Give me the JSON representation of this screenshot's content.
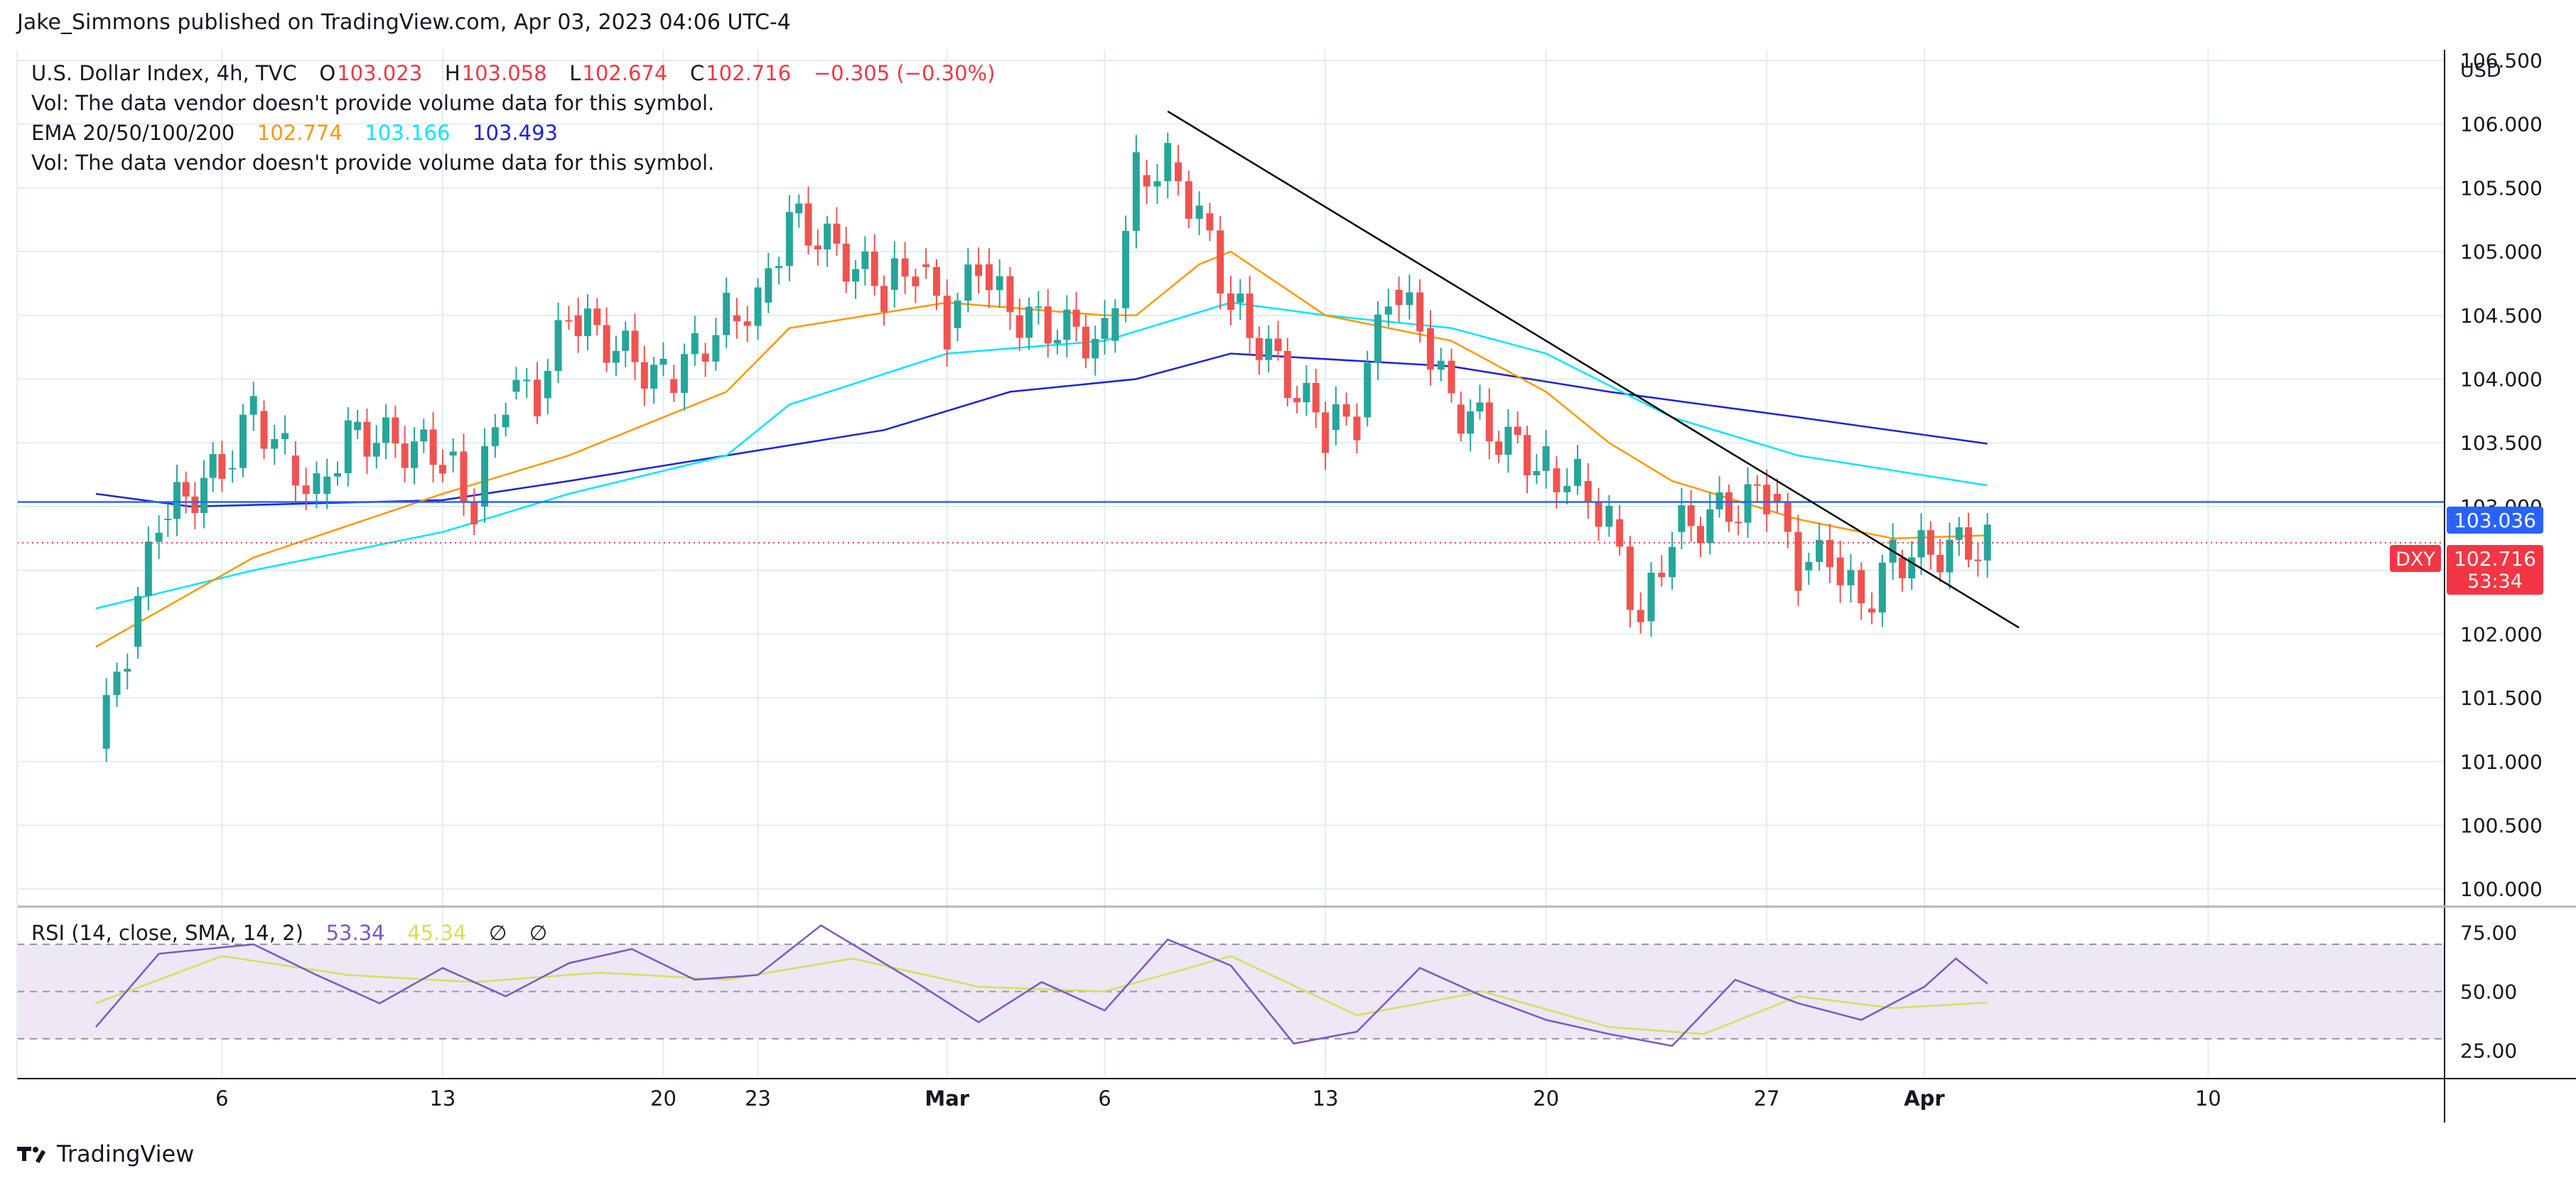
{
  "header": {
    "publisher_line": "Jake_Simmons published on TradingView.com, Apr 03, 2023 04:06 UTC-4"
  },
  "legend": {
    "symbol_line": "U.S. Dollar Index, 4h, TVC",
    "open_label": "O",
    "open": "103.023",
    "high_label": "H",
    "high": "103.058",
    "low_label": "L",
    "low": "102.674",
    "close_label": "C",
    "close": "102.716",
    "change": "−0.305 (−0.30%)",
    "vol_note_1": "Vol: The data vendor doesn't provide volume data for this symbol.",
    "ema_label": "EMA 20/50/100/200",
    "ema20": "102.774",
    "ema50": "103.166",
    "ema100": "103.493",
    "vol_note_2": "Vol: The data vendor doesn't provide volume data for this symbol."
  },
  "rsi_legend": {
    "label": "RSI (14, close, SMA, 14, 2)",
    "rsi": "53.34",
    "sma": "45.34",
    "na1": "∅",
    "na2": "∅"
  },
  "axis": {
    "currency": "USD"
  },
  "price_tags": {
    "line_price": "103.036",
    "symbol": "DXY",
    "last_price": "102.716",
    "countdown": "53:34"
  },
  "footer": {
    "brand": "TradingView"
  },
  "colors": {
    "up": "#26a69a",
    "down": "#ef5350",
    "ema20": "#ff9800",
    "ema50": "#00e5ff",
    "ema100": "#1e22d8",
    "hline": "#2962ff",
    "trendline": "#000000",
    "rsi": "#7e57c2",
    "rsi_sma": "#d4e157",
    "rsi_band": "#ede7f6"
  },
  "chart_data": [
    {
      "type": "candlestick",
      "title": "U.S. Dollar Index, 4h, TVC",
      "ylabel": "USD",
      "ylim": [
        99.7,
        106.5
      ],
      "y_ticks": [
        "106.500",
        "106.000",
        "105.500",
        "105.000",
        "104.500",
        "104.000",
        "103.500",
        "103.000",
        "102.500",
        "102.000",
        "101.500",
        "101.000",
        "100.500",
        "100.000"
      ],
      "x_ticks": [
        "6",
        "13",
        "20",
        "23",
        "Mar",
        "6",
        "13",
        "20",
        "27",
        "Apr",
        "10"
      ],
      "horizontal_line": 103.036,
      "last_price": 102.716,
      "trendline": [
        {
          "x": "2023-03-08",
          "y": 106.1
        },
        {
          "x": "2023-04-04",
          "y": 102.05
        }
      ],
      "price_path": [
        {
          "x": "2023-02-02",
          "y": 101.1
        },
        {
          "x": "2023-02-03",
          "y": 101.9
        },
        {
          "x": "2023-02-04",
          "y": 102.9
        },
        {
          "x": "2023-02-06",
          "y": 103.3
        },
        {
          "x": "2023-02-07",
          "y": 103.75
        },
        {
          "x": "2023-02-08",
          "y": 103.4
        },
        {
          "x": "2023-02-09",
          "y": 103.1
        },
        {
          "x": "2023-02-10",
          "y": 103.6
        },
        {
          "x": "2023-02-13",
          "y": 103.4
        },
        {
          "x": "2023-02-14",
          "y": 103.0
        },
        {
          "x": "2023-02-15",
          "y": 103.9
        },
        {
          "x": "2023-02-16",
          "y": 103.85
        },
        {
          "x": "2023-02-17",
          "y": 104.5
        },
        {
          "x": "2023-02-20",
          "y": 104.0
        },
        {
          "x": "2023-02-21",
          "y": 104.2
        },
        {
          "x": "2023-02-22",
          "y": 104.5
        },
        {
          "x": "2023-02-23",
          "y": 104.6
        },
        {
          "x": "2023-02-24",
          "y": 105.3
        },
        {
          "x": "2023-02-27",
          "y": 104.7
        },
        {
          "x": "2023-02-28",
          "y": 104.9
        },
        {
          "x": "2023-03-01",
          "y": 104.4
        },
        {
          "x": "2023-03-02",
          "y": 104.9
        },
        {
          "x": "2023-03-03",
          "y": 104.5
        },
        {
          "x": "2023-03-06",
          "y": 104.3
        },
        {
          "x": "2023-03-07",
          "y": 105.6
        },
        {
          "x": "2023-03-08",
          "y": 105.7
        },
        {
          "x": "2023-03-09",
          "y": 105.3
        },
        {
          "x": "2023-03-10",
          "y": 104.6
        },
        {
          "x": "2023-03-13",
          "y": 103.6
        },
        {
          "x": "2023-03-14",
          "y": 103.7
        },
        {
          "x": "2023-03-15",
          "y": 104.7
        },
        {
          "x": "2023-03-16",
          "y": 104.4
        },
        {
          "x": "2023-03-17",
          "y": 103.8
        },
        {
          "x": "2023-03-20",
          "y": 103.3
        },
        {
          "x": "2023-03-21",
          "y": 103.2
        },
        {
          "x": "2023-03-22",
          "y": 102.9
        },
        {
          "x": "2023-03-23",
          "y": 102.1
        },
        {
          "x": "2023-03-24",
          "y": 102.8
        },
        {
          "x": "2023-03-27",
          "y": 103.1
        },
        {
          "x": "2023-03-28",
          "y": 102.5
        },
        {
          "x": "2023-03-29",
          "y": 102.6
        },
        {
          "x": "2023-03-30",
          "y": 102.2
        },
        {
          "x": "2023-03-31",
          "y": 102.6
        },
        {
          "x": "2023-04-03",
          "y": 102.716
        }
      ],
      "ema20": [
        {
          "x": "2023-02-02",
          "y": 101.9
        },
        {
          "x": "2023-02-07",
          "y": 102.6
        },
        {
          "x": "2023-02-13",
          "y": 103.1
        },
        {
          "x": "2023-02-17",
          "y": 103.4
        },
        {
          "x": "2023-02-22",
          "y": 103.9
        },
        {
          "x": "2023-02-24",
          "y": 104.4
        },
        {
          "x": "2023-03-01",
          "y": 104.6
        },
        {
          "x": "2023-03-06",
          "y": 104.5
        },
        {
          "x": "2023-03-07",
          "y": 104.5
        },
        {
          "x": "2023-03-09",
          "y": 104.9
        },
        {
          "x": "2023-03-10",
          "y": 105.0
        },
        {
          "x": "2023-03-13",
          "y": 104.5
        },
        {
          "x": "2023-03-15",
          "y": 104.4
        },
        {
          "x": "2023-03-17",
          "y": 104.3
        },
        {
          "x": "2023-03-20",
          "y": 103.9
        },
        {
          "x": "2023-03-22",
          "y": 103.5
        },
        {
          "x": "2023-03-24",
          "y": 103.2
        },
        {
          "x": "2023-03-28",
          "y": 102.9
        },
        {
          "x": "2023-03-31",
          "y": 102.75
        },
        {
          "x": "2023-04-03",
          "y": 102.774
        }
      ],
      "ema50": [
        {
          "x": "2023-02-02",
          "y": 102.2
        },
        {
          "x": "2023-02-07",
          "y": 102.5
        },
        {
          "x": "2023-02-13",
          "y": 102.8
        },
        {
          "x": "2023-02-17",
          "y": 103.1
        },
        {
          "x": "2023-02-22",
          "y": 103.4
        },
        {
          "x": "2023-02-24",
          "y": 103.8
        },
        {
          "x": "2023-03-01",
          "y": 104.2
        },
        {
          "x": "2023-03-06",
          "y": 104.3
        },
        {
          "x": "2023-03-10",
          "y": 104.6
        },
        {
          "x": "2023-03-13",
          "y": 104.5
        },
        {
          "x": "2023-03-17",
          "y": 104.4
        },
        {
          "x": "2023-03-20",
          "y": 104.2
        },
        {
          "x": "2023-03-24",
          "y": 103.7
        },
        {
          "x": "2023-03-28",
          "y": 103.4
        },
        {
          "x": "2023-04-03",
          "y": 103.166
        }
      ],
      "ema100": [
        {
          "x": "2023-02-02",
          "y": 103.1
        },
        {
          "x": "2023-02-05",
          "y": 103.0
        },
        {
          "x": "2023-02-13",
          "y": 103.05
        },
        {
          "x": "2023-02-17",
          "y": 103.2
        },
        {
          "x": "2023-02-22",
          "y": 103.4
        },
        {
          "x": "2023-02-27",
          "y": 103.6
        },
        {
          "x": "2023-03-03",
          "y": 103.9
        },
        {
          "x": "2023-03-07",
          "y": 104.0
        },
        {
          "x": "2023-03-10",
          "y": 104.2
        },
        {
          "x": "2023-03-17",
          "y": 104.1
        },
        {
          "x": "2023-03-22",
          "y": 103.9
        },
        {
          "x": "2023-03-28",
          "y": 103.7
        },
        {
          "x": "2023-04-03",
          "y": 103.493
        }
      ]
    },
    {
      "type": "line",
      "title": "RSI (14, close, SMA, 14, 2)",
      "ylim": [
        15,
        85
      ],
      "y_ticks": [
        "75.00",
        "50.00",
        "25.00"
      ],
      "bands": [
        70,
        50,
        30
      ],
      "series": [
        {
          "name": "RSI",
          "x_y": [
            {
              "x": "2023-02-02",
              "y": 35
            },
            {
              "x": "2023-02-04",
              "y": 66
            },
            {
              "x": "2023-02-07",
              "y": 70
            },
            {
              "x": "2023-02-09",
              "y": 57
            },
            {
              "x": "2023-02-11",
              "y": 45
            },
            {
              "x": "2023-02-13",
              "y": 60
            },
            {
              "x": "2023-02-15",
              "y": 48
            },
            {
              "x": "2023-02-17",
              "y": 62
            },
            {
              "x": "2023-02-19",
              "y": 68
            },
            {
              "x": "2023-02-21",
              "y": 55
            },
            {
              "x": "2023-02-23",
              "y": 57
            },
            {
              "x": "2023-02-25",
              "y": 78
            },
            {
              "x": "2023-02-28",
              "y": 54
            },
            {
              "x": "2023-03-02",
              "y": 37
            },
            {
              "x": "2023-03-04",
              "y": 54
            },
            {
              "x": "2023-03-06",
              "y": 42
            },
            {
              "x": "2023-03-08",
              "y": 72
            },
            {
              "x": "2023-03-10",
              "y": 61
            },
            {
              "x": "2023-03-12",
              "y": 28
            },
            {
              "x": "2023-03-14",
              "y": 33
            },
            {
              "x": "2023-03-16",
              "y": 60
            },
            {
              "x": "2023-03-18",
              "y": 48
            },
            {
              "x": "2023-03-20",
              "y": 38
            },
            {
              "x": "2023-03-22",
              "y": 32
            },
            {
              "x": "2023-03-24",
              "y": 27
            },
            {
              "x": "2023-03-26",
              "y": 55
            },
            {
              "x": "2023-03-28",
              "y": 45
            },
            {
              "x": "2023-03-30",
              "y": 38
            },
            {
              "x": "2023-04-01",
              "y": 52
            },
            {
              "x": "2023-04-02",
              "y": 64
            },
            {
              "x": "2023-04-03",
              "y": 53.34
            }
          ]
        },
        {
          "name": "RSI SMA",
          "x_y": [
            {
              "x": "2023-02-02",
              "y": 45
            },
            {
              "x": "2023-02-06",
              "y": 65
            },
            {
              "x": "2023-02-10",
              "y": 57
            },
            {
              "x": "2023-02-14",
              "y": 54
            },
            {
              "x": "2023-02-18",
              "y": 58
            },
            {
              "x": "2023-02-22",
              "y": 55
            },
            {
              "x": "2023-02-26",
              "y": 64
            },
            {
              "x": "2023-03-02",
              "y": 52
            },
            {
              "x": "2023-03-06",
              "y": 50
            },
            {
              "x": "2023-03-10",
              "y": 65
            },
            {
              "x": "2023-03-14",
              "y": 40
            },
            {
              "x": "2023-03-18",
              "y": 50
            },
            {
              "x": "2023-03-22",
              "y": 35
            },
            {
              "x": "2023-03-25",
              "y": 32
            },
            {
              "x": "2023-03-28",
              "y": 48
            },
            {
              "x": "2023-03-31",
              "y": 43
            },
            {
              "x": "2023-04-03",
              "y": 45.34
            }
          ]
        }
      ]
    }
  ]
}
